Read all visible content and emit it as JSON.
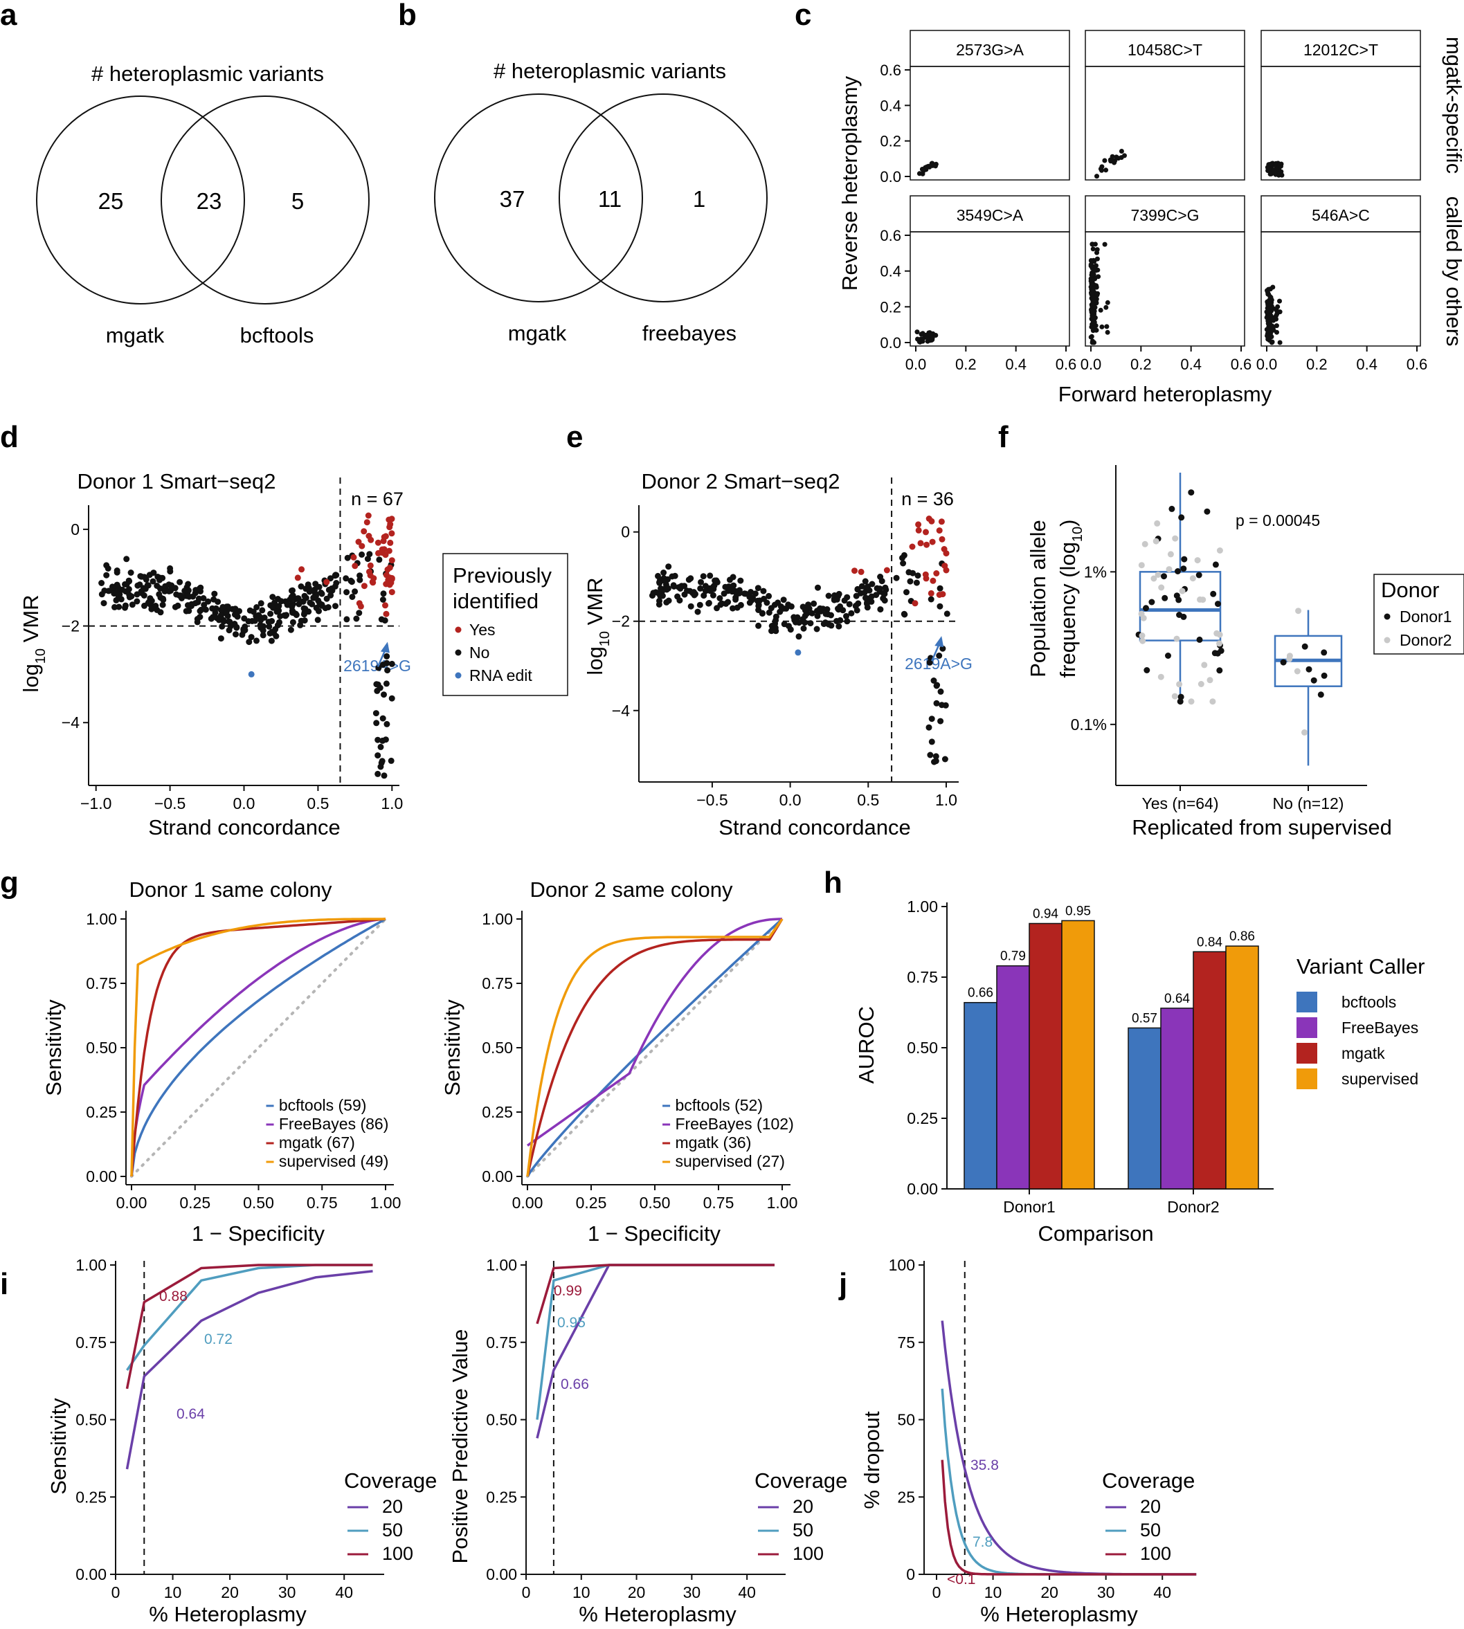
{
  "panel_letters": [
    "a",
    "b",
    "c",
    "d",
    "e",
    "f",
    "g",
    "h",
    "i",
    "j"
  ],
  "colors": {
    "bcftools": "#3e75bd",
    "freebayes": "#8a35b9",
    "mgatk": "#b3231f",
    "supervised": "#f09b0a",
    "cov20": "#6a3fa8",
    "cov50": "#4f9dbf",
    "cov100": "#9b1b3b",
    "yes": "#b3231f",
    "rna": "#3e75bd",
    "donor2": "#c9c9c9",
    "box": "#3e75bd",
    "red_text": "#b3231f"
  },
  "chart_data": [
    {
      "id": "a",
      "type": "venn",
      "title": "# heteroplasmic variants",
      "sets": [
        "mgatk",
        "bcftools"
      ],
      "left_only": 25,
      "overlap": 23,
      "right_only": 5
    },
    {
      "id": "b",
      "type": "venn",
      "title": "# heteroplasmic variants",
      "sets": [
        "mgatk",
        "freebayes"
      ],
      "left_only": 37,
      "overlap": 11,
      "right_only": 1
    },
    {
      "id": "c",
      "type": "scatter",
      "xlabel": "Forward heteroplasmy",
      "ylabel": "Reverse heteroplasmy",
      "xlim": [
        0,
        0.6
      ],
      "ylim": [
        0,
        0.6
      ],
      "ticks": [
        "0.0",
        "0.2",
        "0.4",
        "0.6"
      ],
      "row_labels": [
        "mgatk-specific",
        "called by others"
      ],
      "facets": [
        "2573G>A",
        "10458C>T",
        "12012C>T",
        "3549C>A",
        "7399C>G",
        "546A>C"
      ]
    },
    {
      "id": "d",
      "type": "scatter",
      "title": "Donor 1 Smart−seq2",
      "xlabel": "Strand concordance",
      "ylabel_main": "log",
      "ylabel_sub": "10",
      "ylabel_tail": " VMR",
      "xlim": [
        -1.05,
        1.05
      ],
      "ylim": [
        -5.3,
        0.5
      ],
      "xticks": [
        "−1.0",
        "−0.5",
        "0.0",
        "0.5",
        "1.0"
      ],
      "yticks": [
        "0",
        "−2",
        "−4"
      ],
      "threshold_x": 0.65,
      "threshold_y": -2,
      "n_label": "n = 67",
      "annotation": "2619A>G",
      "legend_title": [
        "Previously",
        "identified"
      ],
      "legend_items": [
        "Yes",
        "No",
        "RNA edit"
      ]
    },
    {
      "id": "e",
      "type": "scatter",
      "title": "Donor 2 Smart−seq2",
      "xlabel": "Strand concordance",
      "ylabel_main": "log",
      "ylabel_sub": "10",
      "ylabel_tail": " VMR",
      "xlim": [
        -0.97,
        1.08
      ],
      "ylim": [
        -5.6,
        0.6
      ],
      "xticks": [
        "−0.5",
        "0.0",
        "0.5",
        "1.0"
      ],
      "yticks": [
        "0",
        "−2",
        "−4"
      ],
      "threshold_x": 0.65,
      "threshold_y": -2,
      "n_label": "n = 36",
      "annotation": "2619A>G"
    },
    {
      "id": "f",
      "type": "boxplot",
      "ylabel": [
        "Population allele",
        "frequency (log"
      ],
      "ylabel_sub": "10",
      "ylabel_close": ")",
      "xlabel": "Replicated from supervised",
      "categories": [
        "Yes (n=64)",
        "No (n=12)"
      ],
      "yticks": [
        "1%",
        "0.1%"
      ],
      "p_value": "p = 0.00045",
      "legend_title": "Donor",
      "legend_items": [
        "Donor1",
        "Donor2"
      ]
    },
    {
      "id": "g",
      "type": "line",
      "xlabel": "1 − Specificity",
      "ylabel": "Sensitivity",
      "ticks": [
        "0.00",
        "0.25",
        "0.50",
        "0.75",
        "1.00"
      ],
      "panels": [
        {
          "title": "Donor 1 same colony",
          "legend": [
            "bcftools (59)",
            "FreeBayes (86)",
            "mgatk (67)",
            "supervised (49)"
          ]
        },
        {
          "title": "Donor 2 same colony",
          "legend": [
            "bcftools (52)",
            "FreeBayes (102)",
            "mgatk (36)",
            "supervised (27)"
          ]
        }
      ]
    },
    {
      "id": "h",
      "type": "bar",
      "xlabel": "Comparison",
      "ylabel": "AUROC",
      "categories": [
        "Donor1",
        "Donor2"
      ],
      "yticks": [
        "0.00",
        "0.25",
        "0.50",
        "0.75",
        "1.00"
      ],
      "ylim": [
        0,
        1
      ],
      "series": [
        {
          "name": "bcftools",
          "values": [
            0.66,
            0.57
          ]
        },
        {
          "name": "FreeBayes",
          "values": [
            0.79,
            0.64
          ]
        },
        {
          "name": "mgatk",
          "values": [
            0.94,
            0.84
          ]
        },
        {
          "name": "supervised",
          "values": [
            0.95,
            0.86
          ]
        }
      ],
      "labels": [
        [
          "0.66",
          "0.79",
          "0.94",
          "0.95"
        ],
        [
          "0.57",
          "0.64",
          "0.84",
          "0.86"
        ]
      ],
      "legend_title": "Variant Caller"
    },
    {
      "id": "i",
      "type": "line",
      "xlabel": "% Heteroplasmy",
      "xticks": [
        "0",
        "10",
        "20",
        "30",
        "40"
      ],
      "yticks": [
        "0.00",
        "0.25",
        "0.50",
        "0.75",
        "1.00"
      ],
      "threshold_x": 5,
      "legend_title": "Coverage",
      "legend_items": [
        "20",
        "50",
        "100"
      ],
      "panels": [
        {
          "ylabel": "Sensitivity",
          "annotations": [
            "0.88",
            "0.72",
            "0.64"
          ],
          "series": {
            "20": [
              [
                2,
                0.34
              ],
              [
                5,
                0.64
              ],
              [
                15,
                0.82
              ],
              [
                25,
                0.91
              ],
              [
                35,
                0.96
              ],
              [
                45,
                0.98
              ]
            ],
            "50": [
              [
                2,
                0.66
              ],
              [
                5,
                0.74
              ],
              [
                15,
                0.95
              ],
              [
                25,
                0.99
              ],
              [
                35,
                1.0
              ],
              [
                45,
                1.0
              ]
            ],
            "100": [
              [
                2,
                0.6
              ],
              [
                5,
                0.88
              ],
              [
                15,
                0.99
              ],
              [
                25,
                1.0
              ],
              [
                35,
                1.0
              ],
              [
                45,
                1.0
              ]
            ]
          }
        },
        {
          "ylabel": "Positive Predictive Value",
          "annotations": [
            "0.99",
            "0.95",
            "0.66"
          ],
          "series": {
            "20": [
              [
                2,
                0.44
              ],
              [
                5,
                0.66
              ],
              [
                15,
                1.0
              ],
              [
                25,
                1.0
              ],
              [
                35,
                1.0
              ],
              [
                45,
                1.0
              ]
            ],
            "50": [
              [
                2,
                0.5
              ],
              [
                5,
                0.95
              ],
              [
                15,
                1.0
              ],
              [
                25,
                1.0
              ],
              [
                35,
                1.0
              ],
              [
                45,
                1.0
              ]
            ],
            "100": [
              [
                2,
                0.81
              ],
              [
                5,
                0.99
              ],
              [
                15,
                1.0
              ],
              [
                25,
                1.0
              ],
              [
                35,
                1.0
              ],
              [
                45,
                1.0
              ]
            ]
          }
        }
      ]
    },
    {
      "id": "j",
      "type": "line",
      "xlabel": "% Heteroplasmy",
      "ylabel": "% dropout",
      "xticks": [
        "0",
        "10",
        "20",
        "30",
        "40"
      ],
      "yticks": [
        "0",
        "25",
        "50",
        "75",
        "100"
      ],
      "threshold_x": 5,
      "annotations": [
        "35.8",
        "7.8",
        "<0.1"
      ],
      "legend_title": "Coverage",
      "legend_items": [
        "20",
        "50",
        "100"
      ]
    }
  ]
}
